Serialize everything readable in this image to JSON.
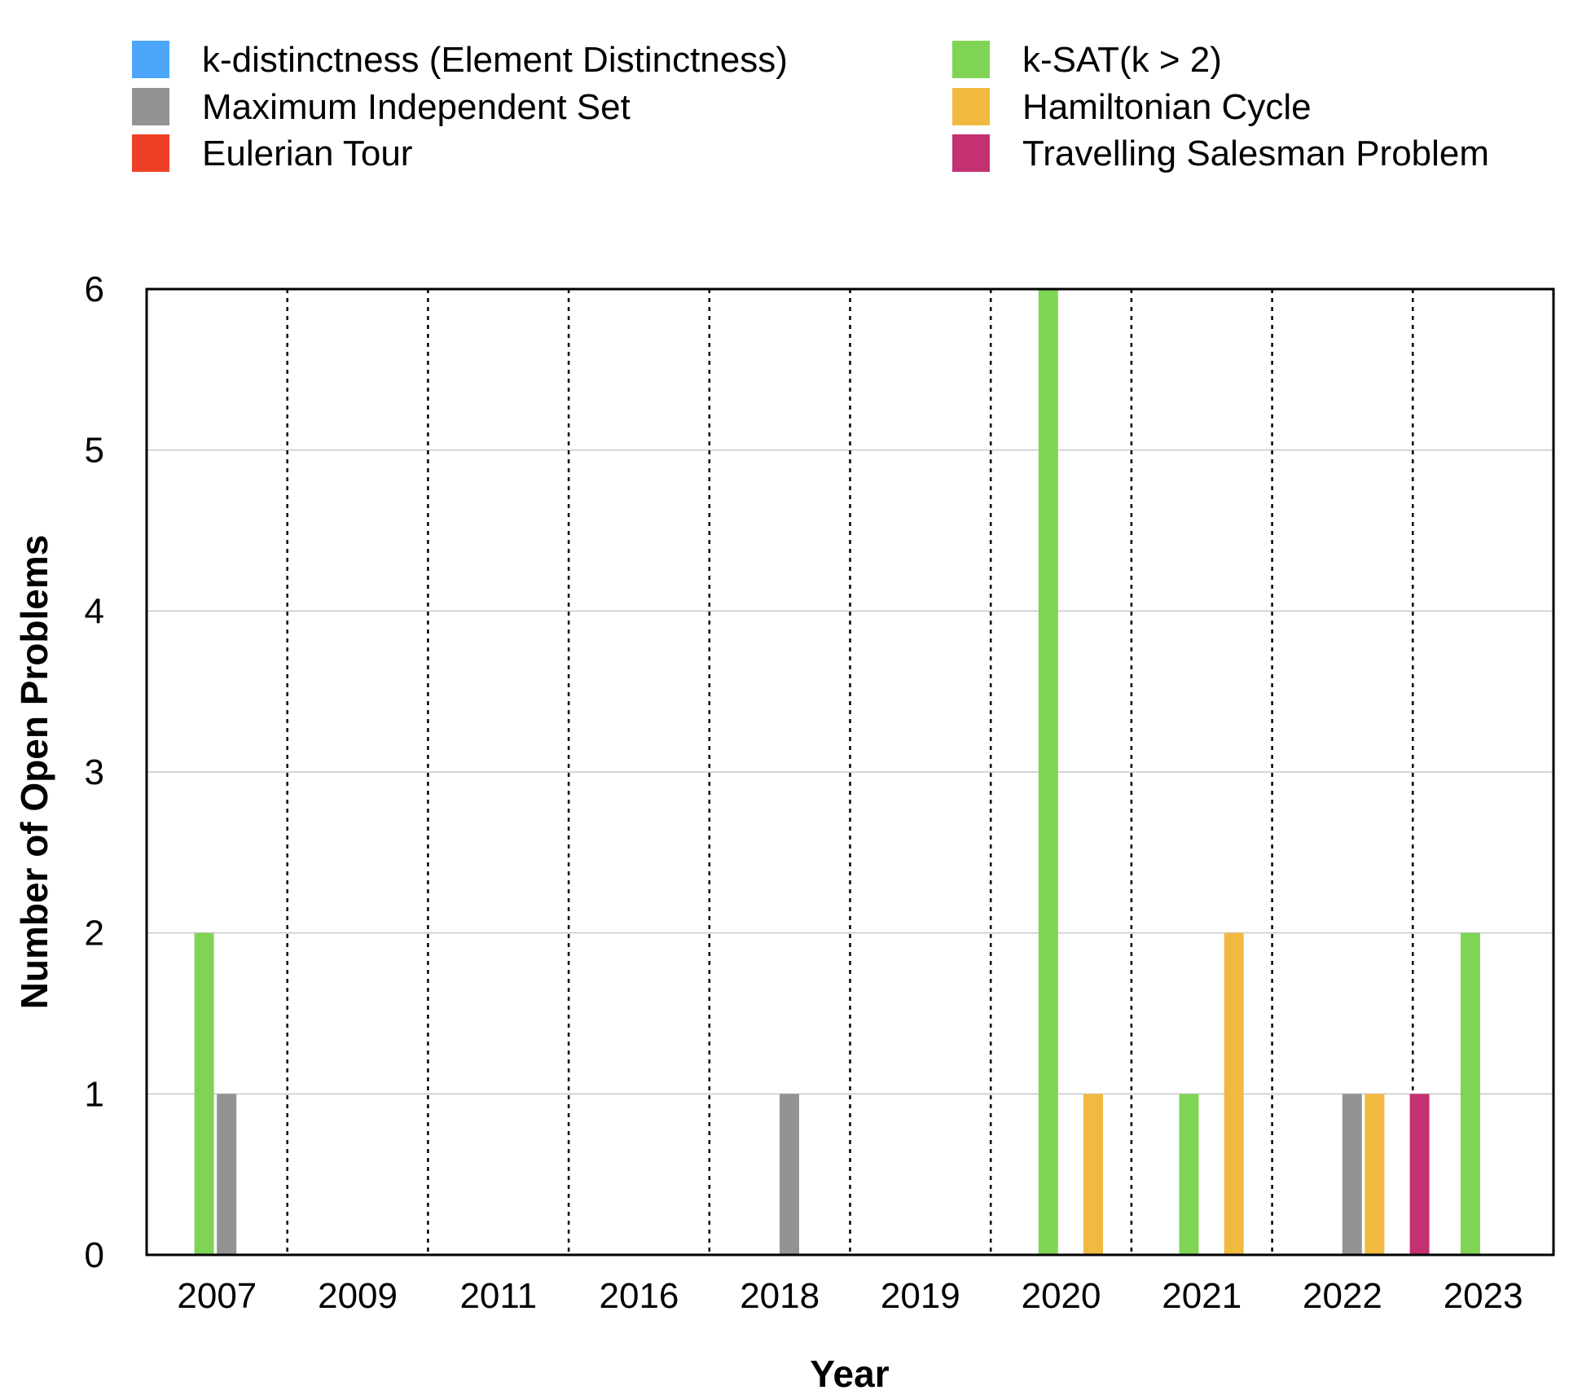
{
  "chart_data": {
    "type": "bar",
    "title": "",
    "xlabel": "Year",
    "ylabel": "Number of Open Problems",
    "ylim": [
      0,
      6
    ],
    "yticks": [
      "0",
      "1",
      "2",
      "3",
      "4",
      "5",
      "6"
    ],
    "categories": [
      "2007",
      "2009",
      "2011",
      "2016",
      "2018",
      "2019",
      "2020",
      "2021",
      "2022",
      "2023"
    ],
    "legend_position": "top",
    "grid": "horizontal",
    "series": [
      {
        "name": "k-distinctness (Element Distinctness)",
        "color": "#4DA6FA",
        "values": [
          0,
          0,
          0,
          0,
          0,
          0,
          0,
          0,
          0,
          0
        ]
      },
      {
        "name": "k-SAT(k > 2)",
        "color": "#80D455",
        "values": [
          2,
          0,
          0,
          0,
          0,
          0,
          6,
          1,
          0,
          2
        ]
      },
      {
        "name": "Maximum Independent Set",
        "color": "#939393",
        "values": [
          1,
          0,
          0,
          0,
          1,
          0,
          0,
          0,
          1,
          0
        ]
      },
      {
        "name": "Hamiltonian Cycle",
        "color": "#F0BA40",
        "values": [
          0,
          0,
          0,
          0,
          0,
          0,
          1,
          2,
          1,
          0
        ]
      },
      {
        "name": "Eulerian Tour",
        "color": "#EE4027",
        "values": [
          0,
          0,
          0,
          0,
          0,
          0,
          0,
          0,
          0,
          0
        ]
      },
      {
        "name": "Travelling Salesman Problem",
        "color": "#C43172",
        "values": [
          0,
          0,
          0,
          0,
          0,
          0,
          0,
          0,
          1,
          0
        ]
      }
    ]
  }
}
